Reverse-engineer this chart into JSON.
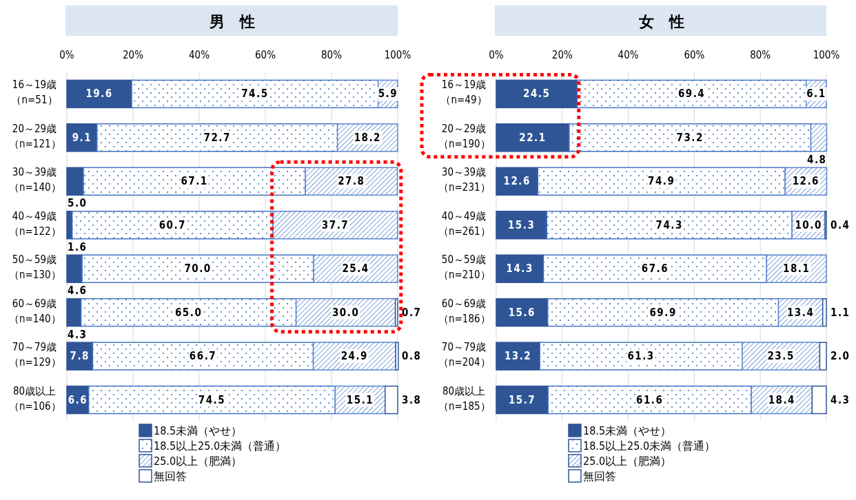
{
  "chart_data": [
    {
      "type": "bar",
      "orientation": "horizontal",
      "stacked": true,
      "title": "男　性",
      "categories": [
        "16～19歳（n=51）",
        "20～29歳（n=121）",
        "30～39歳（n=140）",
        "40～49歳（n=122）",
        "50～59歳（n=130）",
        "60～69歳（n=140）",
        "70～79歳（n=129）",
        "80歳以上（n=106）"
      ],
      "series": [
        {
          "name": "18.5未満（やせ）",
          "color": "#2f5597",
          "values": [
            19.6,
            9.1,
            5.0,
            1.6,
            4.6,
            4.3,
            7.8,
            6.6
          ],
          "value_labels": [
            "19.6",
            "9.1",
            "5.0",
            "1.6",
            "4.6",
            "4.3",
            "7.8",
            "6.6"
          ]
        },
        {
          "name": "18.5以上25.0未満（普通）",
          "color": "#4472c4",
          "values": [
            74.5,
            72.7,
            67.1,
            60.7,
            70.0,
            65.0,
            66.7,
            74.5
          ],
          "value_labels": [
            "74.5",
            "72.7",
            "67.1",
            "60.7",
            "70.0",
            "65.0",
            "66.7",
            "74.5"
          ]
        },
        {
          "name": "25.0以上（肥満）",
          "color": "#5b86cf",
          "values": [
            5.9,
            18.2,
            27.8,
            37.7,
            25.4,
            30.0,
            24.9,
            15.1
          ],
          "value_labels": [
            "5.9",
            "18.2",
            "27.8",
            "37.7",
            "25.4",
            "30.0",
            "24.9",
            "15.1"
          ]
        },
        {
          "name": "無回答",
          "color": "#ffffff",
          "values": [
            null,
            null,
            null,
            null,
            null,
            0.7,
            0.8,
            3.8
          ],
          "value_labels": [
            null,
            null,
            null,
            null,
            null,
            "0.7",
            "0.8",
            "3.8"
          ]
        }
      ],
      "xlim": [
        0,
        100
      ],
      "xticks": [
        {
          "value": 0,
          "label": "0%"
        },
        {
          "value": 20,
          "label": "20%"
        },
        {
          "value": 40,
          "label": "40%"
        },
        {
          "value": 60,
          "label": "60%"
        },
        {
          "value": 80,
          "label": "80%"
        },
        {
          "value": 100,
          "label": "100%"
        }
      ],
      "grid": "x",
      "legend": "bottom"
    },
    {
      "type": "bar",
      "orientation": "horizontal",
      "stacked": true,
      "title": "女　性",
      "categories": [
        "16～19歳（n=49）",
        "20～29歳（n=190）",
        "30～39歳（n=231）",
        "40～49歳（n=261）",
        "50～59歳（n=210）",
        "60～69歳（n=186）",
        "70～79歳（n=204）",
        "80歳以上（n=185）"
      ],
      "series": [
        {
          "name": "18.5未満（やせ）",
          "color": "#2f5597",
          "values": [
            24.5,
            22.1,
            12.6,
            15.3,
            14.3,
            15.6,
            13.2,
            15.7
          ],
          "value_labels": [
            "24.5",
            "22.1",
            "12.6",
            "15.3",
            "14.3",
            "15.6",
            "13.2",
            "15.7"
          ]
        },
        {
          "name": "18.5以上25.0未満（普通）",
          "color": "#4472c4",
          "values": [
            69.4,
            73.2,
            74.9,
            74.3,
            67.6,
            69.9,
            61.3,
            61.6
          ],
          "value_labels": [
            "69.4",
            "73.2",
            "74.9",
            "74.3",
            "67.6",
            "69.9",
            "61.3",
            "61.6"
          ]
        },
        {
          "name": "25.0以上（肥満）",
          "color": "#5b86cf",
          "values": [
            6.1,
            4.8,
            12.6,
            10.0,
            18.1,
            13.4,
            23.5,
            18.4
          ],
          "value_labels": [
            "6.1",
            "4.8",
            "12.6",
            "10.0",
            "18.1",
            "13.4",
            "23.5",
            "18.4"
          ]
        },
        {
          "name": "無回答",
          "color": "#ffffff",
          "values": [
            null,
            null,
            null,
            0.4,
            null,
            1.1,
            2.0,
            4.3
          ],
          "value_labels": [
            null,
            null,
            null,
            "0.4",
            null,
            "1.1",
            "2.0",
            "4.3"
          ]
        }
      ],
      "xlim": [
        0,
        100
      ],
      "xticks": [
        {
          "value": 0,
          "label": "0%"
        },
        {
          "value": 20,
          "label": "20%"
        },
        {
          "value": 40,
          "label": "40%"
        },
        {
          "value": 60,
          "label": "60%"
        },
        {
          "value": 80,
          "label": "80%"
        },
        {
          "value": 100,
          "label": "100%"
        }
      ],
      "grid": "x",
      "legend": "bottom"
    }
  ]
}
